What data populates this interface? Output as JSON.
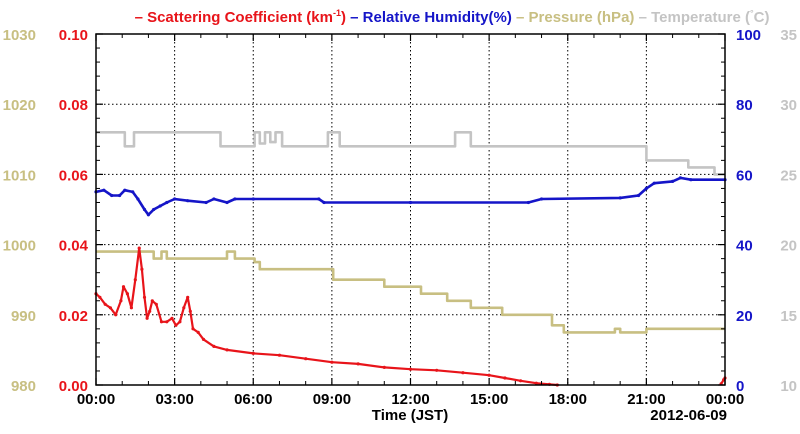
{
  "chart_data": {
    "type": "line",
    "title": "",
    "xlabel": "Time (JST)",
    "date_label": "2012-06-09",
    "x_ticks": [
      "00:00",
      "03:00",
      "06:00",
      "09:00",
      "12:00",
      "15:00",
      "18:00",
      "21:00",
      "00:00"
    ],
    "xlim_hours": [
      0,
      24
    ],
    "grid": true,
    "legend": {
      "placement": "top",
      "entries": [
        {
          "series": "scattering",
          "prefix": "– Scattering Coefficient (km",
          "sup": "-1",
          "suffix": ")"
        },
        {
          "series": "humidity",
          "prefix": "– Relative Humidity(%)",
          "sup": "",
          "suffix": ""
        },
        {
          "series": "pressure",
          "prefix": "– Pressure (hPa)",
          "sup": "",
          "suffix": ""
        },
        {
          "series": "temperature",
          "prefix": "– Temperature (",
          "sup": "°",
          "suffix": "C)"
        }
      ]
    },
    "axes": {
      "pressure": {
        "side": "left-outer",
        "ylim": [
          980,
          1030
        ],
        "ticks": [
          "980",
          "990",
          "1000",
          "1010",
          "1020",
          "1030"
        ],
        "color": "#c8bf82"
      },
      "scattering": {
        "side": "left-inner",
        "ylim": [
          0,
          0.1
        ],
        "ticks": [
          "0.00",
          "0.02",
          "0.04",
          "0.06",
          "0.08",
          "0.10"
        ],
        "color": "#e8141a"
      },
      "humidity": {
        "side": "right-inner",
        "ylim": [
          0,
          100
        ],
        "ticks": [
          "0",
          "20",
          "40",
          "60",
          "80",
          "100"
        ],
        "color": "#1515c8"
      },
      "temperature": {
        "side": "right-outer",
        "ylim": [
          10,
          35
        ],
        "ticks": [
          "10",
          "15",
          "20",
          "25",
          "30",
          "35"
        ],
        "color": "#c4c4c4"
      }
    },
    "series": [
      {
        "key": "temperature",
        "axis": "temperature",
        "color": "#c4c4c4",
        "step": true,
        "points": [
          [
            0,
            28
          ],
          [
            1.1,
            27
          ],
          [
            1.45,
            28
          ],
          [
            4.75,
            27
          ],
          [
            6.05,
            28
          ],
          [
            6.25,
            27.2
          ],
          [
            6.45,
            28
          ],
          [
            6.65,
            27.3
          ],
          [
            6.85,
            28
          ],
          [
            7.1,
            27
          ],
          [
            8.85,
            28
          ],
          [
            9.3,
            27
          ],
          [
            13.7,
            28
          ],
          [
            14.3,
            27
          ],
          [
            21.0,
            26
          ],
          [
            22.6,
            25.5
          ],
          [
            23.6,
            25
          ],
          [
            24,
            25
          ]
        ]
      },
      {
        "key": "humidity",
        "axis": "humidity",
        "color": "#1515c8",
        "step": false,
        "points": [
          [
            0,
            55
          ],
          [
            0.3,
            55.5
          ],
          [
            0.6,
            54
          ],
          [
            0.9,
            54
          ],
          [
            1.1,
            55.5
          ],
          [
            1.4,
            55
          ],
          [
            1.6,
            53
          ],
          [
            1.85,
            50
          ],
          [
            2.0,
            48.5
          ],
          [
            2.2,
            50
          ],
          [
            2.45,
            51
          ],
          [
            2.7,
            52
          ],
          [
            3.0,
            53
          ],
          [
            3.5,
            52.5
          ],
          [
            4.2,
            52
          ],
          [
            4.5,
            53
          ],
          [
            5.0,
            52
          ],
          [
            5.3,
            53
          ],
          [
            6.0,
            53
          ],
          [
            8.5,
            53
          ],
          [
            8.7,
            52
          ],
          [
            12.0,
            52
          ],
          [
            16.5,
            52
          ],
          [
            17.0,
            53
          ],
          [
            20.0,
            53.3
          ],
          [
            20.7,
            54
          ],
          [
            21.0,
            56
          ],
          [
            21.3,
            57.5
          ],
          [
            22.0,
            58
          ],
          [
            22.3,
            59
          ],
          [
            22.7,
            58.5
          ],
          [
            24,
            58.5
          ]
        ]
      },
      {
        "key": "pressure",
        "axis": "pressure",
        "color": "#c8bf82",
        "step": true,
        "points": [
          [
            0,
            999
          ],
          [
            2.2,
            998
          ],
          [
            2.5,
            999
          ],
          [
            2.7,
            998
          ],
          [
            5.0,
            999
          ],
          [
            5.3,
            998
          ],
          [
            6.05,
            997.5
          ],
          [
            6.25,
            996.5
          ],
          [
            8.9,
            996.5
          ],
          [
            9.05,
            995
          ],
          [
            11.0,
            994
          ],
          [
            12.4,
            993
          ],
          [
            13.4,
            992
          ],
          [
            14.3,
            991
          ],
          [
            15.5,
            990
          ],
          [
            17.4,
            988.5
          ],
          [
            17.85,
            987.5
          ],
          [
            19.8,
            988
          ],
          [
            20.0,
            987.5
          ],
          [
            21.0,
            988
          ],
          [
            24,
            988
          ]
        ]
      },
      {
        "key": "scattering",
        "axis": "scattering",
        "color": "#e8141a",
        "step": false,
        "points": [
          [
            0,
            0.026
          ],
          [
            0.15,
            0.025
          ],
          [
            0.35,
            0.023
          ],
          [
            0.55,
            0.022
          ],
          [
            0.75,
            0.02
          ],
          [
            0.95,
            0.024
          ],
          [
            1.05,
            0.028
          ],
          [
            1.2,
            0.026
          ],
          [
            1.35,
            0.022
          ],
          [
            1.5,
            0.03
          ],
          [
            1.65,
            0.039
          ],
          [
            1.75,
            0.033
          ],
          [
            1.85,
            0.025
          ],
          [
            1.95,
            0.019
          ],
          [
            2.05,
            0.021
          ],
          [
            2.15,
            0.024
          ],
          [
            2.3,
            0.023
          ],
          [
            2.5,
            0.018
          ],
          [
            2.7,
            0.018
          ],
          [
            2.9,
            0.019
          ],
          [
            3.05,
            0.017
          ],
          [
            3.2,
            0.018
          ],
          [
            3.35,
            0.022
          ],
          [
            3.5,
            0.025
          ],
          [
            3.6,
            0.021
          ],
          [
            3.7,
            0.016
          ],
          [
            3.9,
            0.015
          ],
          [
            4.1,
            0.013
          ],
          [
            4.5,
            0.011
          ],
          [
            5.0,
            0.01
          ],
          [
            6.0,
            0.009
          ],
          [
            7.0,
            0.0085
          ],
          [
            8.0,
            0.0075
          ],
          [
            9.0,
            0.0065
          ],
          [
            10.0,
            0.006
          ],
          [
            11.0,
            0.005
          ],
          [
            12.0,
            0.0045
          ],
          [
            13.0,
            0.0042
          ],
          [
            14.0,
            0.0035
          ],
          [
            15.0,
            0.0028
          ],
          [
            15.6,
            0.002
          ],
          [
            16.2,
            0.0012
          ],
          [
            16.8,
            0.0005
          ],
          [
            17.3,
            0.0002
          ],
          [
            17.6,
            0.0
          ]
        ]
      },
      {
        "key": "scattering",
        "axis": "scattering",
        "color": "#e8141a",
        "step": false,
        "points": [
          [
            23.85,
            0.0003
          ],
          [
            23.95,
            0.0015
          ],
          [
            24,
            0.002
          ]
        ]
      }
    ]
  }
}
